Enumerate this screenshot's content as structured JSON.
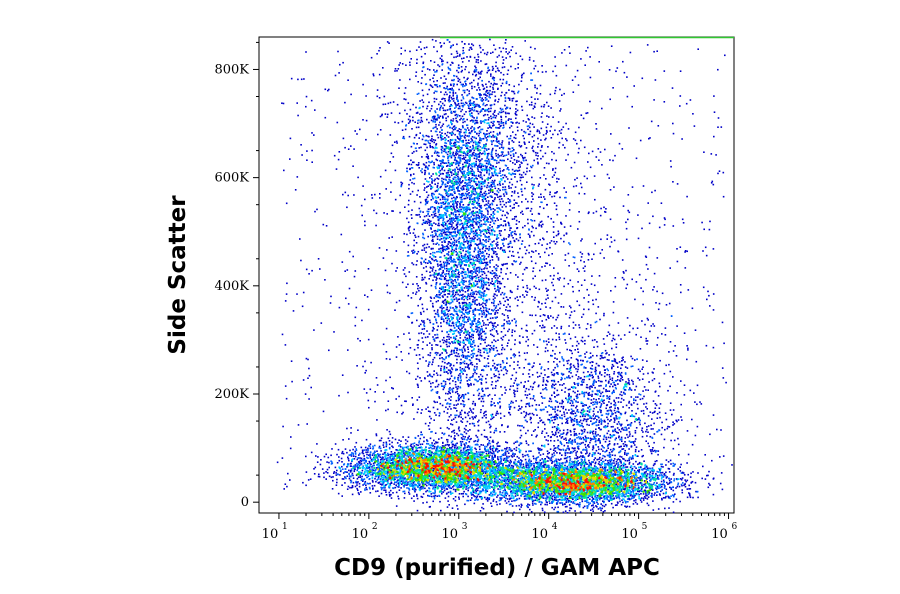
{
  "chart_data": {
    "type": "scatter",
    "subtype": "flow-cytometry-density-dot-plot",
    "xlabel": "CD9 (purified) / GAM APC",
    "ylabel": "Side Scatter",
    "x_scale": "log",
    "xlim": [
      6,
      1150000
    ],
    "ylim": [
      -20000,
      860000
    ],
    "x_ticks": [
      {
        "base": "10",
        "exp": "1",
        "value": 10
      },
      {
        "base": "10",
        "exp": "2",
        "value": 100
      },
      {
        "base": "10",
        "exp": "3",
        "value": 1000
      },
      {
        "base": "10",
        "exp": "4",
        "value": 10000
      },
      {
        "base": "10",
        "exp": "5",
        "value": 100000
      },
      {
        "base": "10",
        "exp": "6",
        "value": 1000000
      }
    ],
    "y_ticks": [
      {
        "label": "0",
        "value": 0
      },
      {
        "label": "200K",
        "value": 200000
      },
      {
        "label": "400K",
        "value": 400000
      },
      {
        "label": "600K",
        "value": 600000
      },
      {
        "label": "800K",
        "value": 800000
      }
    ],
    "grid": false,
    "legend": "none",
    "color_scale": [
      "#0000c8",
      "#0060ff",
      "#00c8ff",
      "#00e0a0",
      "#40e000",
      "#e0e000",
      "#ff8000",
      "#ff1000"
    ],
    "populations": [
      {
        "x_center": 600,
        "y_center": 60000,
        "density": "high"
      },
      {
        "x_center": 18000,
        "y_center": 35000,
        "density": "high"
      },
      {
        "x_center": 1100,
        "y_center": 480000,
        "density": "medium"
      }
    ]
  }
}
